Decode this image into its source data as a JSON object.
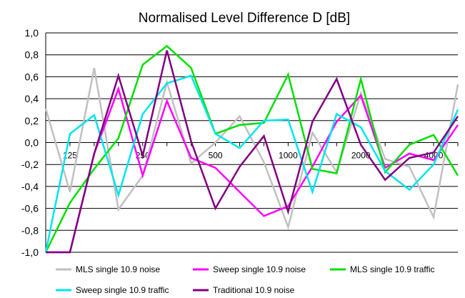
{
  "chart_data": {
    "type": "line",
    "title": "Normalised Level Difference D [dB]",
    "xlabel": "",
    "ylabel": "",
    "ylim": [
      -1.0,
      1.0
    ],
    "y_ticks": [
      "1,0",
      "0,8",
      "0,6",
      "0,4",
      "0,2",
      "0,0",
      "-0,2",
      "-0,4",
      "-0,6",
      "-0,8",
      "-1,0"
    ],
    "y_tick_values": [
      1.0,
      0.8,
      0.6,
      0.4,
      0.2,
      0.0,
      -0.2,
      -0.4,
      -0.6,
      -0.8,
      -1.0
    ],
    "x": [
      100,
      125,
      160,
      200,
      250,
      315,
      400,
      500,
      630,
      800,
      1000,
      1250,
      1600,
      2000,
      2500,
      3150,
      4000,
      5000
    ],
    "x_tick_labels": [
      "",
      "125",
      "",
      "",
      "250",
      "",
      "",
      "500",
      "",
      "",
      "1000",
      "",
      "",
      "2000",
      "",
      "",
      "4000",
      ""
    ],
    "grid": "horizontal",
    "legend_position": "bottom",
    "series": [
      {
        "name": "MLS single 10.9 noise",
        "color": "#c0c0c0",
        "values": [
          0.31,
          -0.45,
          0.68,
          -0.61,
          -0.3,
          0.55,
          -0.19,
          0.0,
          0.24,
          -0.18,
          -0.77,
          0.09,
          -0.27,
          0.45,
          -0.15,
          -0.22,
          -0.68,
          0.53
        ]
      },
      {
        "name": "Sweep single 10.9 noise",
        "color": "#ff00ff",
        "values": [
          -1.0,
          -1.0,
          -0.1,
          0.49,
          -0.3,
          0.38,
          -0.14,
          -0.23,
          -0.45,
          -0.67,
          -0.58,
          -0.22,
          0.19,
          0.43,
          -0.23,
          -0.1,
          -0.16,
          0.16
        ]
      },
      {
        "name": "MLS single 10.9 traffic",
        "color": "#00e000",
        "values": [
          -1.0,
          -0.55,
          -0.24,
          0.04,
          0.71,
          0.88,
          0.68,
          0.08,
          0.16,
          0.18,
          0.62,
          -0.24,
          -0.28,
          0.58,
          -0.27,
          -0.02,
          0.07,
          -0.3
        ]
      },
      {
        "name": "Sweep single 10.9 traffic",
        "color": "#00e5ee",
        "values": [
          -1.0,
          0.08,
          0.25,
          -0.48,
          0.26,
          0.54,
          0.61,
          0.08,
          -0.05,
          0.2,
          0.21,
          -0.45,
          0.26,
          0.14,
          -0.26,
          -0.43,
          -0.2,
          0.3
        ]
      },
      {
        "name": "Traditional 10.9 noise",
        "color": "#800080",
        "values": [
          -1.0,
          -1.0,
          -0.1,
          0.61,
          -0.12,
          0.84,
          0.01,
          -0.6,
          -0.22,
          0.06,
          -0.63,
          0.19,
          0.58,
          -0.02,
          -0.34,
          -0.14,
          -0.09,
          0.24
        ]
      }
    ]
  }
}
